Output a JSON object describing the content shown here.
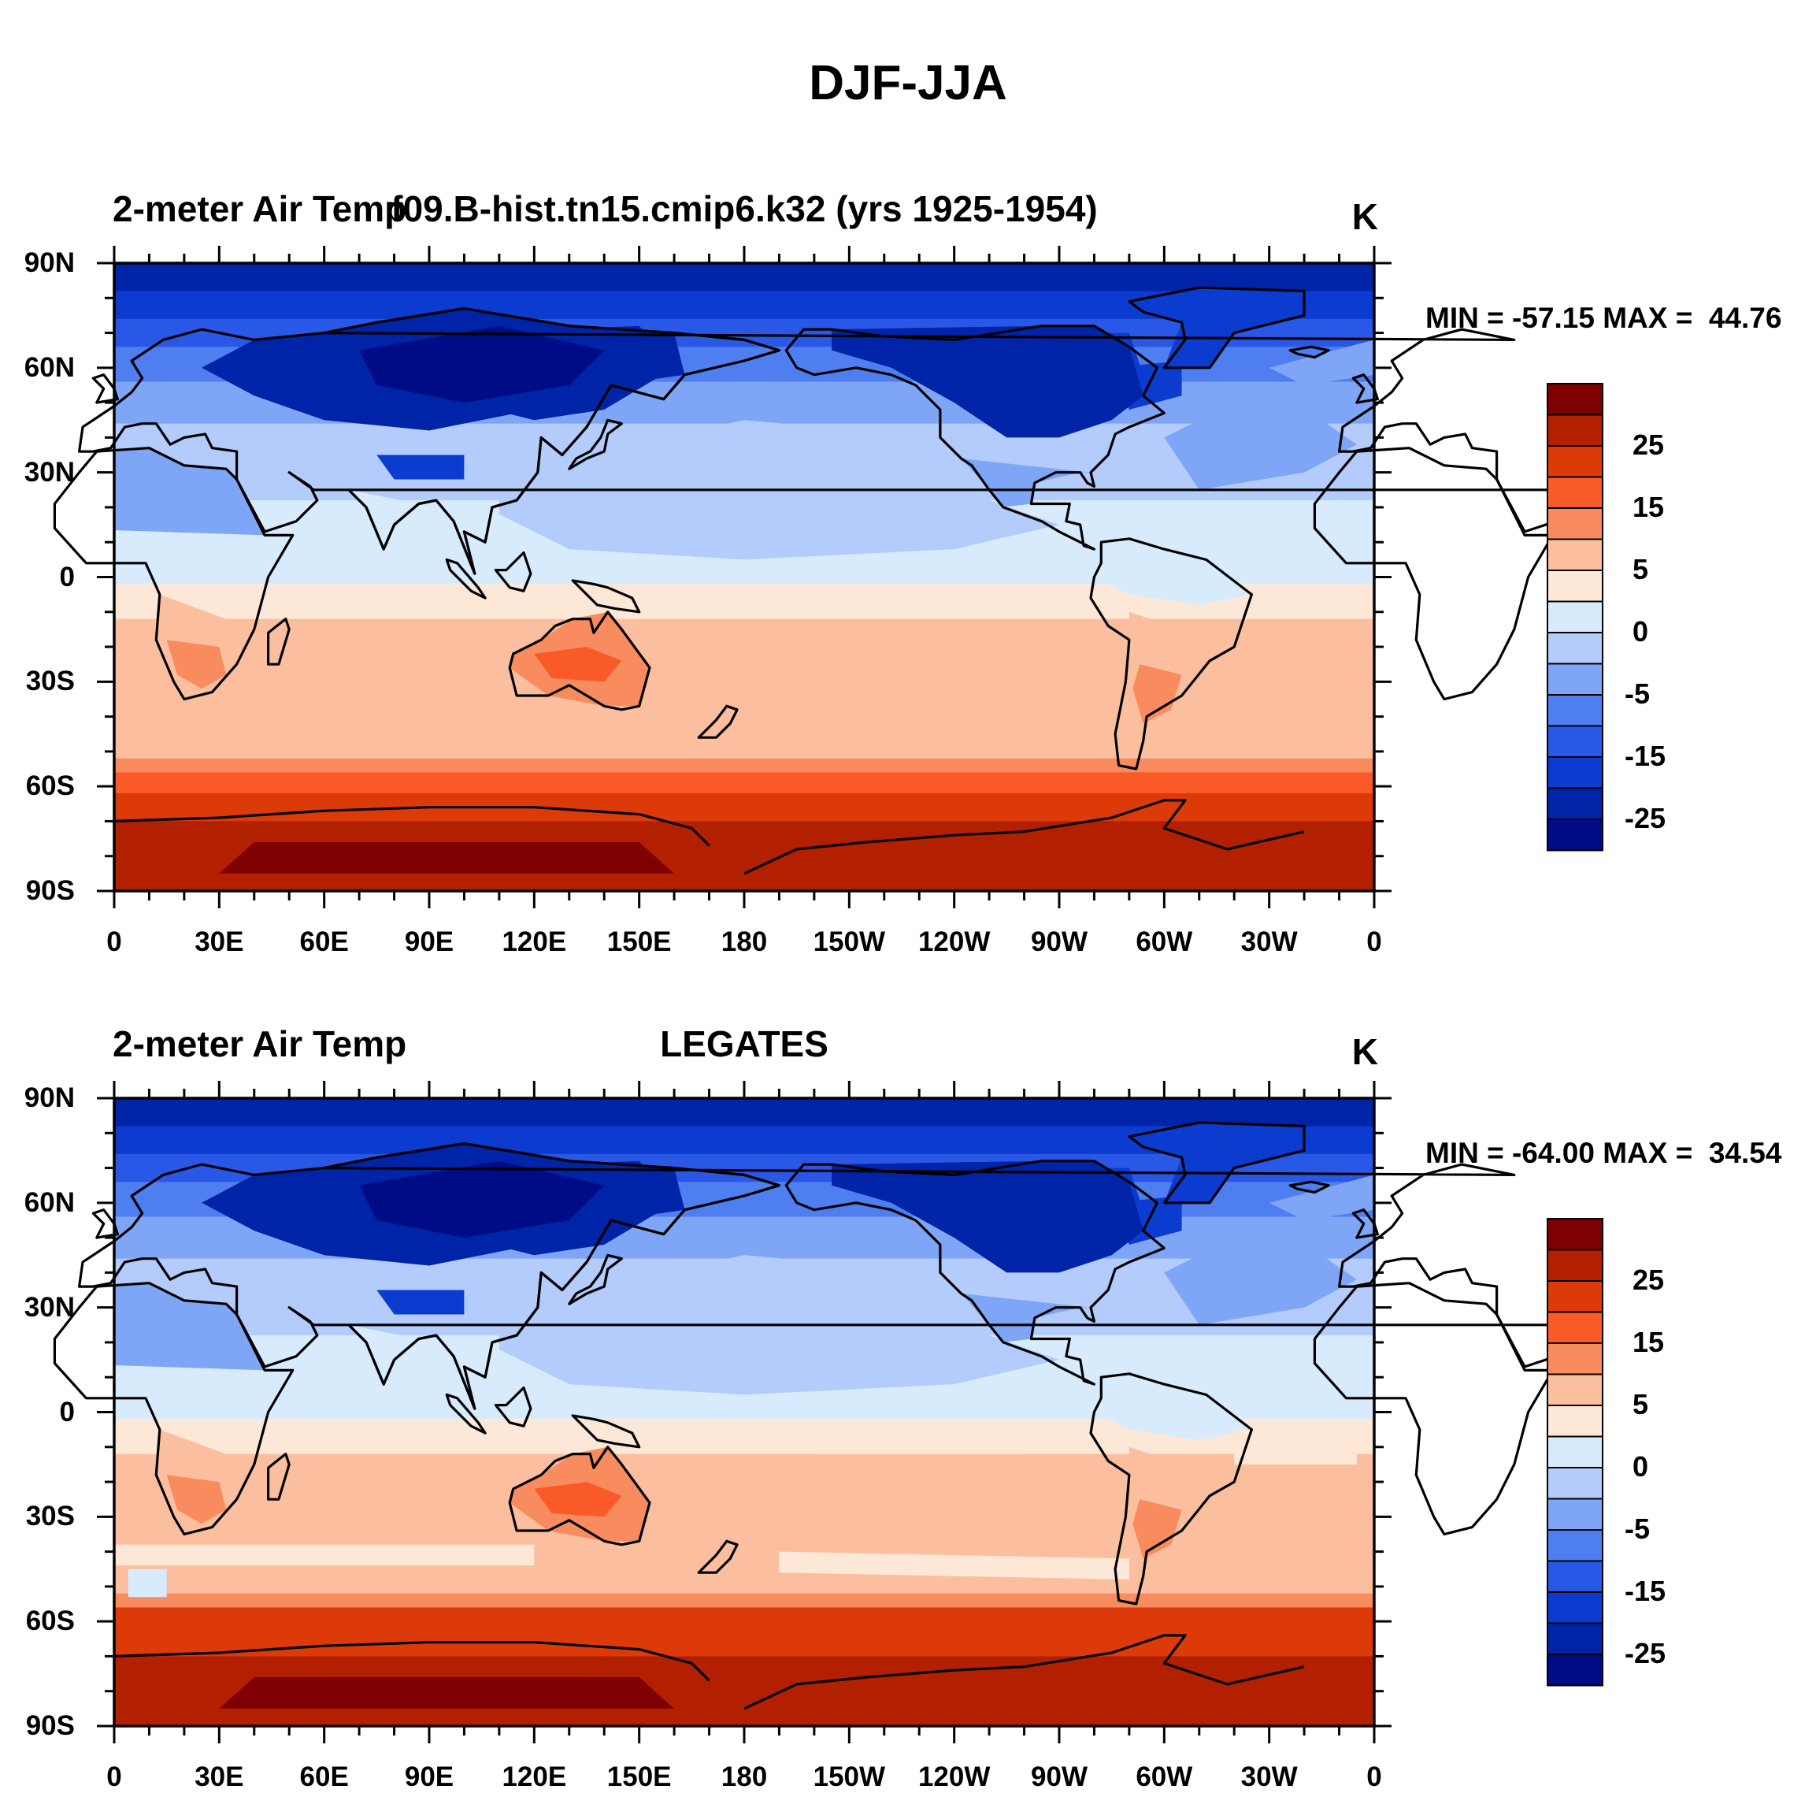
{
  "figure_title": "DJF-JJA",
  "panels": [
    {
      "left_title": "2-meter Air Temp",
      "center_title": "f09.B-hist.tn15.cmip6.k32 (yrs 1925-1954)",
      "units": "K",
      "min_label": "MIN = -57.15",
      "max_label": "MAX =  44.76",
      "min_value": -57.15,
      "max_value": 44.76
    },
    {
      "left_title": "2-meter Air Temp",
      "center_title": "LEGATES",
      "units": "K",
      "min_label": "MIN = -64.00",
      "max_label": "MAX =  34.54",
      "min_value": -64.0,
      "max_value": 34.54
    }
  ],
  "lat_ticks": [
    "90N",
    "60N",
    "30N",
    "0",
    "30S",
    "60S",
    "90S"
  ],
  "lon_ticks": [
    "0",
    "30E",
    "60E",
    "90E",
    "120E",
    "150E",
    "180",
    "150W",
    "120W",
    "90W",
    "60W",
    "30W",
    "0"
  ],
  "colorbar": {
    "labels": [
      "25",
      "15",
      "5",
      "0",
      "-5",
      "-15",
      "-25"
    ],
    "colors": [
      "#7f0000",
      "#b32000",
      "#dc3a08",
      "#fa5a28",
      "#f88c5e",
      "#fbbfa0",
      "#fde8d8",
      "#d8ebfc",
      "#b3ccfb",
      "#7fa6f6",
      "#4f7ef0",
      "#2a58e6",
      "#0b3bcf",
      "#0024a8",
      "#000c86"
    ]
  },
  "colors": {
    "land_outline": "#000000",
    "frame": "#000000"
  }
}
